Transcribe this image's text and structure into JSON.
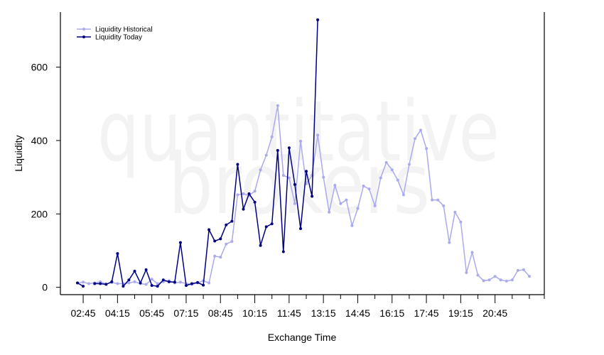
{
  "watermark": {
    "line1": "quantitative",
    "line2": "brokers"
  },
  "chart_data": {
    "type": "line",
    "xlabel": "Exchange Time",
    "ylabel": "Liquidity",
    "ylim": [
      -20,
      750
    ],
    "yticks": [
      0,
      200,
      400,
      600
    ],
    "xticks": [
      "02:45",
      "04:15",
      "05:45",
      "07:15",
      "08:45",
      "10:15",
      "11:45",
      "13:15",
      "14:45",
      "16:15",
      "17:45",
      "19:15",
      "20:45"
    ],
    "legend_position": "top-left",
    "series": [
      {
        "name": "Liquidity Historical",
        "color": "#aaaaee",
        "values": [
          12,
          14,
          10,
          12,
          15,
          9,
          13,
          10,
          10,
          12,
          15,
          10,
          8,
          22,
          10,
          15,
          18,
          12,
          14,
          10,
          8,
          12,
          18,
          12,
          85,
          82,
          118,
          125,
          252,
          255,
          250,
          262,
          320,
          360,
          410,
          495,
          305,
          298,
          228,
          398,
          282,
          305,
          415,
          300,
          205,
          278,
          228,
          238,
          168,
          215,
          276,
          268,
          222,
          298,
          340,
          320,
          292,
          252,
          335,
          405,
          428,
          378,
          238,
          238,
          222,
          122,
          205,
          178,
          40,
          95,
          33,
          18,
          20,
          30,
          20,
          17,
          20,
          46,
          48,
          30
        ]
      },
      {
        "name": "Liquidity Today",
        "color": "#000080",
        "values": [
          12,
          3,
          null,
          10,
          10,
          8,
          15,
          92,
          3,
          20,
          44,
          12,
          48,
          5,
          3,
          20,
          15,
          14,
          122,
          5,
          10,
          13,
          6,
          157,
          126,
          132,
          170,
          180,
          335,
          213,
          255,
          232,
          114,
          165,
          173,
          373,
          97,
          380,
          280,
          160,
          316,
          248,
          729
        ]
      }
    ]
  }
}
